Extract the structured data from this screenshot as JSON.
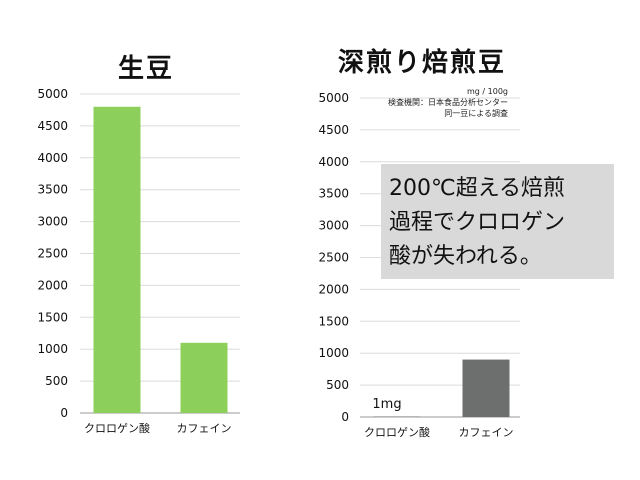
{
  "chart_data": [
    {
      "type": "bar",
      "title": "生豆",
      "categories": [
        "クロロゲン酸",
        "カフェイン"
      ],
      "values": [
        4800,
        1100
      ],
      "ylim": [
        0,
        5000
      ],
      "yticks": [
        0,
        500,
        1000,
        1500,
        2000,
        2500,
        3000,
        3500,
        4000,
        4500,
        5000
      ],
      "grid": true,
      "colors": [
        "#8cd05b",
        "#8cd05b"
      ]
    },
    {
      "type": "bar",
      "title": "深煎り焙煎豆",
      "categories": [
        "クロロゲン酸",
        "カフェイン"
      ],
      "values": [
        1,
        900
      ],
      "ylim": [
        0,
        5000
      ],
      "yticks": [
        0,
        500,
        1000,
        1500,
        2000,
        2500,
        3000,
        3500,
        4000,
        4500,
        5000
      ],
      "grid": true,
      "colors": [
        "#6d6f6f",
        "#6d6f6f"
      ],
      "annotations": {
        "unit_note": [
          "mg / 100g",
          "検査機関：日本食品分析センター",
          "同一豆による調査"
        ],
        "callout": [
          "200℃超える焙煎",
          "過程でクロロゲン",
          "酸が失われる。"
        ],
        "bar_label": "1mg"
      }
    }
  ]
}
